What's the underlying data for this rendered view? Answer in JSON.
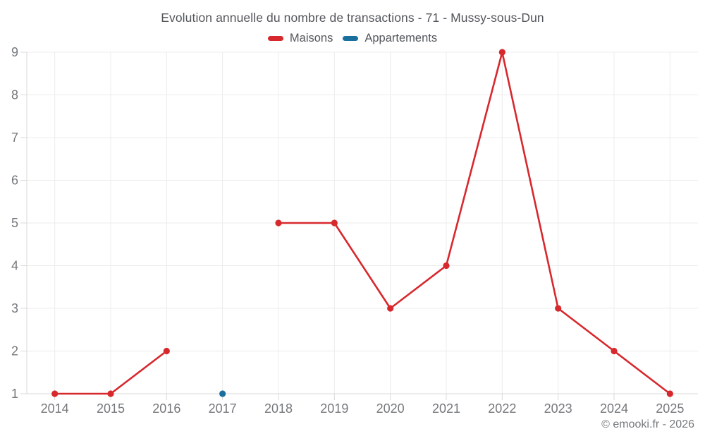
{
  "chart_data": {
    "type": "line",
    "title": "Evolution annuelle du nombre de transactions - 71 - Mussy-sous-Dun",
    "categories": [
      "2014",
      "2015",
      "2016",
      "2017",
      "2018",
      "2019",
      "2020",
      "2021",
      "2022",
      "2023",
      "2024",
      "2025"
    ],
    "series": [
      {
        "name": "Maisons",
        "color": "#d7282d",
        "values": [
          1,
          1,
          2,
          null,
          5,
          5,
          3,
          4,
          9,
          3,
          2,
          1
        ]
      },
      {
        "name": "Appartements",
        "color": "#1a6f9e",
        "values": [
          null,
          null,
          null,
          1,
          null,
          null,
          null,
          null,
          null,
          null,
          null,
          null
        ]
      }
    ],
    "y_ticks": [
      1,
      2,
      3,
      4,
      5,
      6,
      7,
      8,
      9
    ],
    "ylim": [
      1,
      9
    ],
    "grid": true,
    "legend_position": "top"
  },
  "footer": {
    "credit": "© emooki.fr - 2026"
  },
  "colors": {
    "maisons": "#d7282d",
    "appartements": "#1a6f9e",
    "gridline": "#ececec",
    "axis": "#d9d9d9",
    "title_text": "#53565b",
    "axis_text": "#75787c"
  }
}
